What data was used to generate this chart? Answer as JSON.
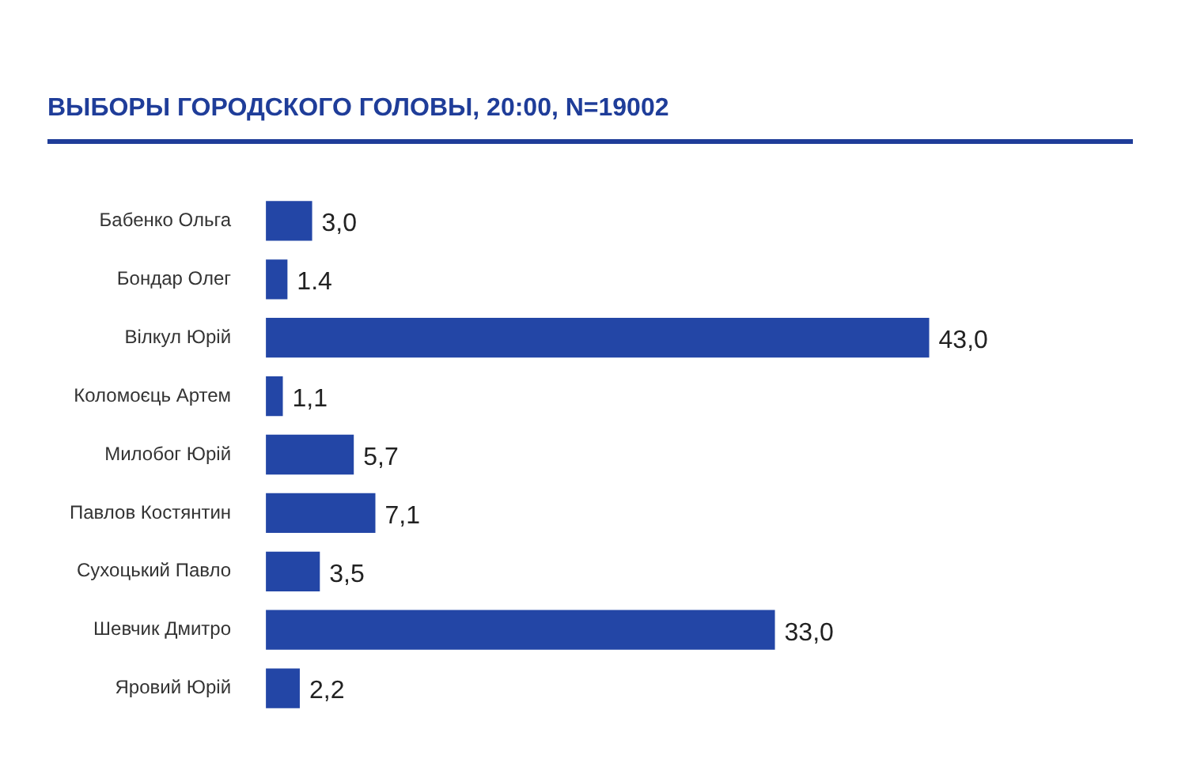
{
  "chart_data": {
    "type": "bar",
    "orientation": "horizontal",
    "title": "ВЫБОРЫ ГОРОДСКОГО ГОЛОВЫ, 20:00, N=19002",
    "categories": [
      "Бабенко Ольга",
      "Бондар Олег",
      "Вілкул Юрій",
      "Коломоєць Артем",
      "Милобог Юрій",
      "Павлов Костянтин",
      "Сухоцький Павло",
      "Шевчик Дмитро",
      "Яровий Юрій"
    ],
    "values": [
      3.0,
      1.4,
      43.0,
      1.1,
      5.7,
      7.1,
      3.5,
      33.0,
      2.2
    ],
    "value_labels": [
      "3,0",
      "1.4",
      "43,0",
      "1,1",
      "5,7",
      "7,1",
      "3,5",
      "33,0",
      "2,2"
    ],
    "color": "#2346a6",
    "legend": false
  }
}
